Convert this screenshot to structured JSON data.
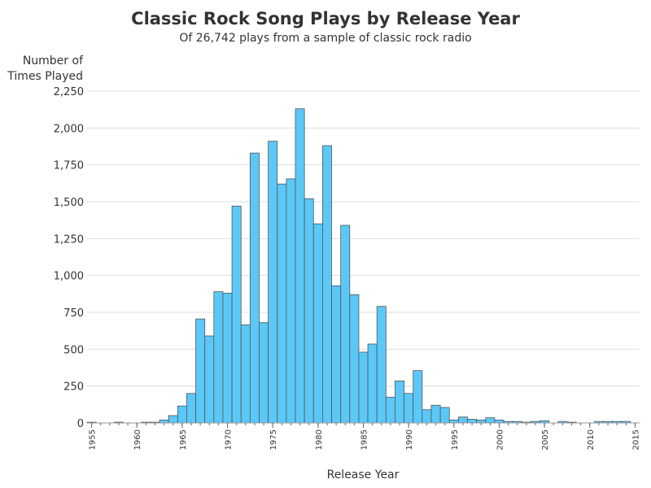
{
  "chart_data": {
    "type": "bar",
    "title": "Classic Rock Song Plays by Release Year",
    "subtitle": "Of 26,742 plays from a sample of classic rock radio",
    "x_label": "Release Year",
    "y_label": "Number of Times Played",
    "color": "#5bc8f7",
    "grid": true,
    "x": [
      1955,
      1956,
      1957,
      1958,
      1959,
      1960,
      1961,
      1962,
      1963,
      1964,
      1965,
      1966,
      1967,
      1968,
      1969,
      1970,
      1971,
      1972,
      1973,
      1974,
      1975,
      1976,
      1977,
      1978,
      1979,
      1980,
      1981,
      1982,
      1983,
      1984,
      1985,
      1986,
      1987,
      1988,
      1989,
      1990,
      1991,
      1992,
      1993,
      1994,
      1995,
      1996,
      1997,
      1998,
      1999,
      2000,
      2001,
      2002,
      2003,
      2004,
      2005,
      2006,
      2007,
      2008,
      2009,
      2010,
      2011,
      2012,
      2013,
      2014,
      2015
    ],
    "values": [
      5,
      0,
      0,
      5,
      0,
      0,
      5,
      5,
      20,
      50,
      115,
      200,
      705,
      590,
      890,
      880,
      1470,
      665,
      1830,
      680,
      1910,
      1620,
      1655,
      2130,
      1520,
      1350,
      1880,
      930,
      1340,
      870,
      480,
      535,
      790,
      175,
      285,
      200,
      355,
      90,
      120,
      105,
      20,
      40,
      25,
      20,
      35,
      20,
      10,
      10,
      5,
      10,
      15,
      0,
      10,
      5,
      0,
      0,
      10,
      10,
      10,
      10,
      0
    ],
    "xlim": [
      1954.5,
      2015.5
    ],
    "xticks": [
      1955,
      1960,
      1965,
      1970,
      1975,
      1980,
      1985,
      1990,
      1995,
      2000,
      2005,
      2010,
      2015
    ],
    "ylim": [
      0,
      2250
    ],
    "yticks": [
      0,
      250,
      500,
      750,
      {
        "value": 1000,
        "label": "1,000"
      },
      {
        "value": 1250,
        "label": "1,250"
      },
      {
        "value": 1500,
        "label": "1,500"
      },
      {
        "value": 1750,
        "label": "1,750"
      },
      {
        "value": 2000,
        "label": "2,000"
      },
      {
        "value": 2250,
        "label": "2,250"
      }
    ]
  }
}
